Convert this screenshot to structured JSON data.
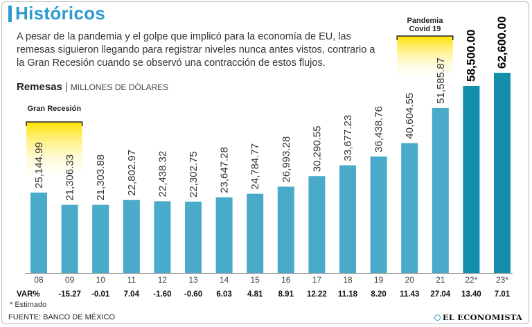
{
  "header": {
    "title": "Históricos",
    "intro": "A pesar de la pandemia y el golpe que implicó para la economía de EU, las remesas siguieron llegando para registrar niveles nunca antes vistos, contrario a la Gran Recesión cuando se observó una contracción de estos flujos."
  },
  "series_label": {
    "name": "Remesas",
    "separator": "|",
    "unit": "MILLONES DE DÓLARES"
  },
  "footer": {
    "footnote": "* Estimado",
    "source": "FUENTE: BANCO DE MÉXICO",
    "brand": "EL ECONOMISTA"
  },
  "colors": {
    "bar": "#4aaac9",
    "bar_estimated": "#138fac",
    "highlight": "#ffe100",
    "title": "#2e9ad0"
  },
  "chart_data": {
    "type": "bar",
    "title": "Remesas",
    "ylabel": "Millones de dólares",
    "ylim": [
      0,
      65000
    ],
    "categories": [
      "08",
      "09",
      "10",
      "11",
      "12",
      "13",
      "14",
      "15",
      "16",
      "17",
      "18",
      "19",
      "20",
      "21",
      "22*",
      "23*"
    ],
    "values": [
      25144.99,
      21306.33,
      21303.88,
      22802.97,
      22438.32,
      22302.75,
      23647.28,
      24784.77,
      26993.28,
      30290.55,
      33677.23,
      36438.76,
      40604.55,
      51585.87,
      58500.0,
      62600.0
    ],
    "value_labels": [
      "25,144.99",
      "21,306.33",
      "21,303.88",
      "22,802.97",
      "22,438.32",
      "22,302.75",
      "23,647.28",
      "24,784.77",
      "26,993.28",
      "30,290.55",
      "33,677.23",
      "36,438.76",
      "40,604.55",
      "51,585.87",
      "58,500.00",
      "62,600.00"
    ],
    "estimated": [
      false,
      false,
      false,
      false,
      false,
      false,
      false,
      false,
      false,
      false,
      false,
      false,
      false,
      false,
      true,
      true
    ],
    "variation_label": "VAR%",
    "variation": [
      "",
      "-15.27",
      "-0.01",
      "7.04",
      "-1.60",
      "-0.60",
      "6.03",
      "4.81",
      "8.91",
      "12.22",
      "11.18",
      "8.20",
      "11.43",
      "27.04",
      "13.40",
      "7.01"
    ],
    "annotations": [
      {
        "label": "Gran Recesión",
        "from": 0,
        "to": 1
      },
      {
        "label_lines": [
          "Pandemia",
          "Covid 19"
        ],
        "from": 12,
        "to": 13
      }
    ]
  }
}
